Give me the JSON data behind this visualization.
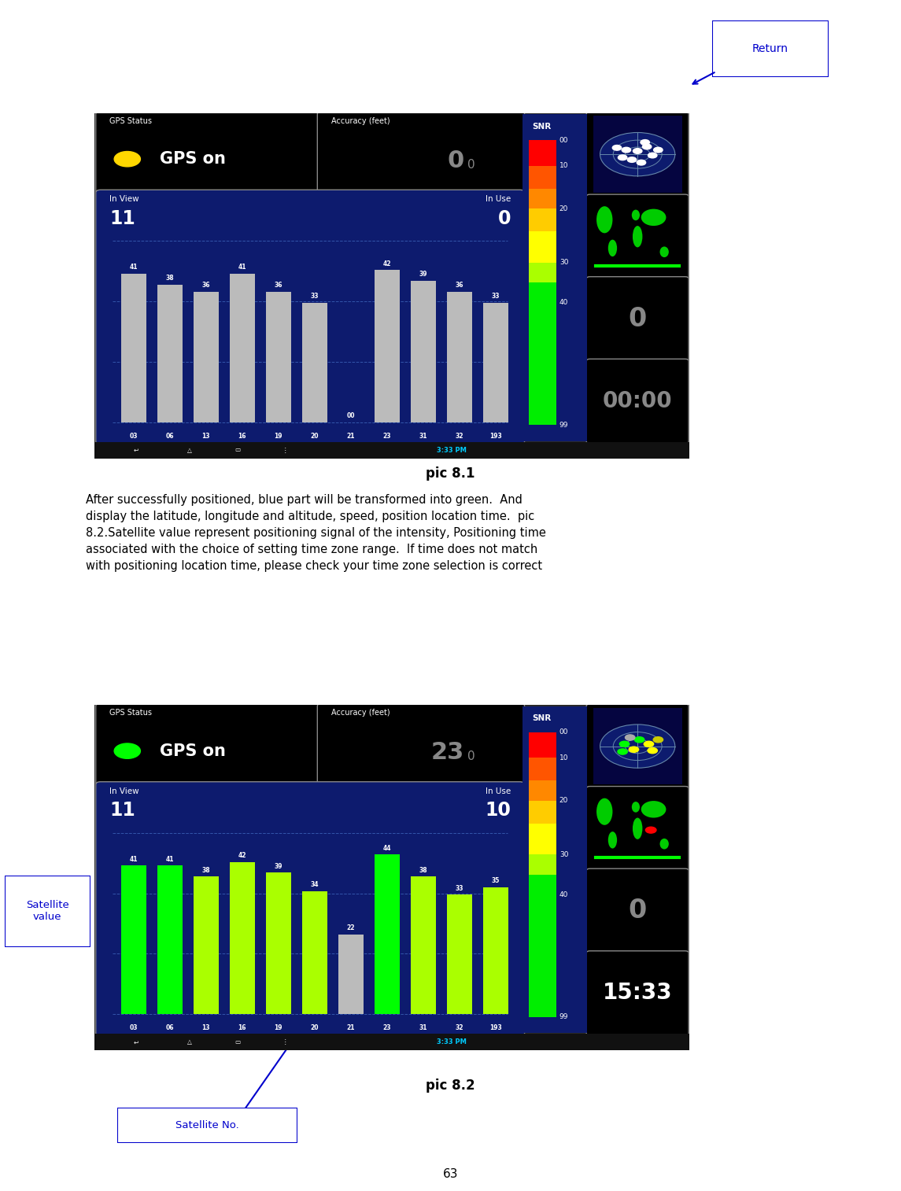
{
  "page_number": "63",
  "pic1_label": "pic 8.1",
  "pic2_label": "pic 8.2",
  "description_line1": "After successfully positioned, blue part will be transformed into green.  And",
  "description_line2": "display the latitude, longitude and altitude, speed, position location time.  pic",
  "description_line3": "8.2.Satellite value represent positioning signal of the intensity, Positioning time",
  "description_line4": "associated with the choice of setting time zone range.  If time does not match",
  "description_line5": "with positioning location time, please check your time zone selection is correct",
  "satellite_no_label": "Satellite No.",
  "satellite_value_label": "Satellite\nvalue",
  "return_label": "Return",
  "pic1": {
    "gps_status_label": "GPS Status",
    "accuracy_label": "Accuracy (feet)",
    "accuracy_value_big": "0",
    "accuracy_value_small": "0",
    "gps_on_text": "GPS on",
    "gps_dot_color": "#FFD700",
    "in_view_label": "In View",
    "in_view_value": "11",
    "in_use_label": "In Use",
    "in_use_value": "0",
    "bar_labels": [
      "03",
      "06",
      "13",
      "16",
      "19",
      "20",
      "21",
      "23",
      "31",
      "32",
      "193"
    ],
    "bar_values": [
      41,
      38,
      36,
      41,
      36,
      33,
      0,
      42,
      39,
      36,
      33
    ],
    "bar_colors": [
      "#BBBBBB",
      "#BBBBBB",
      "#BBBBBB",
      "#BBBBBB",
      "#BBBBBB",
      "#BBBBBB",
      "#BBBBBB",
      "#BBBBBB",
      "#BBBBBB",
      "#BBBBBB",
      "#BBBBBB"
    ],
    "snr_label": "SNR",
    "speed_value": "0",
    "time_value": "00:00",
    "time_color": "#888888",
    "status_bar_time": "3:33 PM",
    "bg_color": "#0D1B6E",
    "panel_bg": "#000000",
    "snr_bg": "#0D1B6E"
  },
  "pic2": {
    "gps_status_label": "GPS Status",
    "accuracy_label": "Accuracy (feet)",
    "accuracy_value_big": "23",
    "accuracy_value_small": "0",
    "gps_on_text": "GPS on",
    "gps_dot_color": "#00FF00",
    "in_view_label": "In View",
    "in_view_value": "11",
    "in_use_label": "In Use",
    "in_use_value": "10",
    "bar_labels": [
      "03",
      "06",
      "13",
      "16",
      "19",
      "20",
      "21",
      "23",
      "31",
      "32",
      "193"
    ],
    "bar_values": [
      41,
      41,
      38,
      42,
      39,
      34,
      22,
      44,
      38,
      33,
      35
    ],
    "bar_colors": [
      "#00FF00",
      "#00FF00",
      "#AAFF00",
      "#AAFF00",
      "#AAFF00",
      "#AAFF00",
      "#BBBBBB",
      "#00FF00",
      "#AAFF00",
      "#AAFF00",
      "#AAFF00"
    ],
    "snr_label": "SNR",
    "speed_value": "0",
    "time_value": "15:33",
    "time_color": "#FFFFFF",
    "status_bar_time": "3:33 PM",
    "bg_color": "#0D1B6E",
    "panel_bg": "#000000",
    "snr_bg": "#0D1B6E"
  }
}
